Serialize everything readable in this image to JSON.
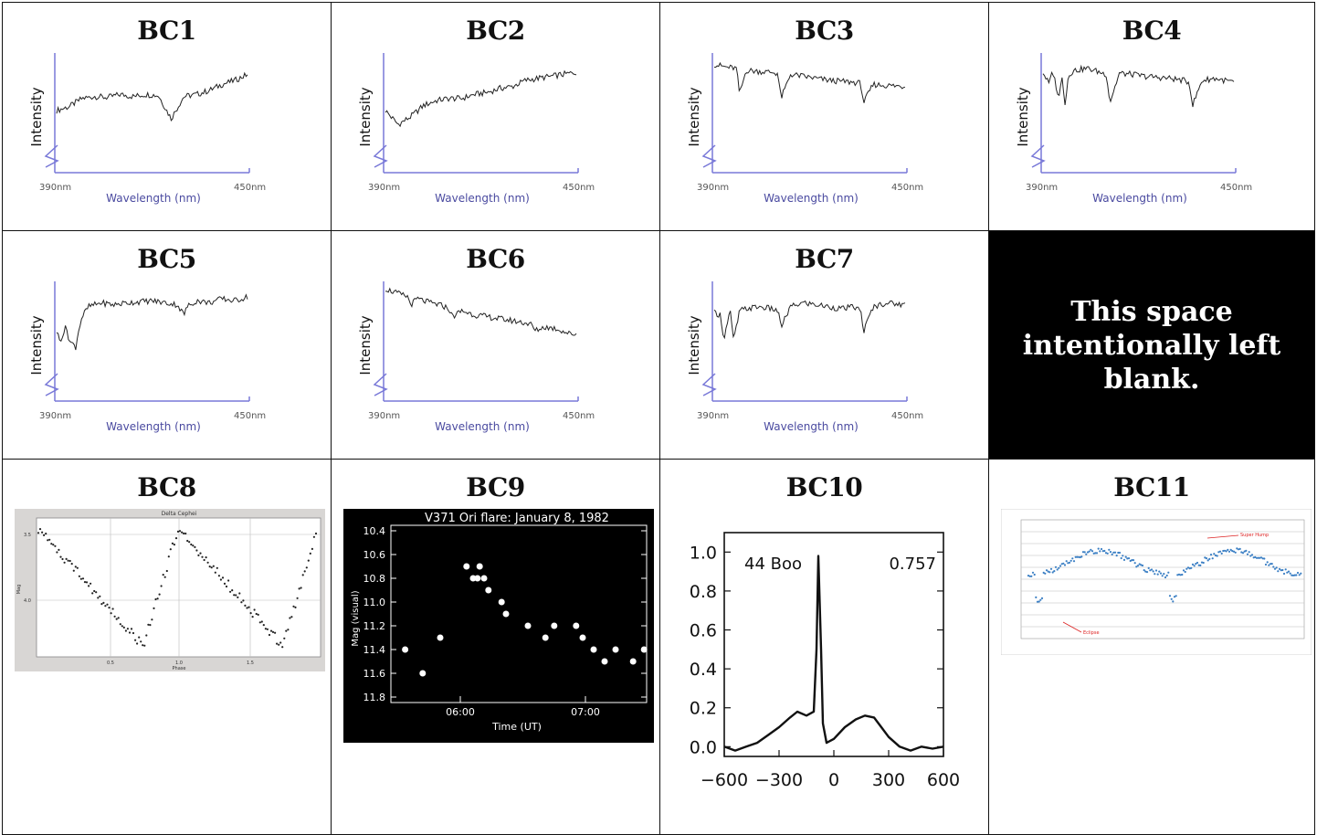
{
  "cells": {
    "bc1": {
      "title": "BC1"
    },
    "bc2": {
      "title": "BC2"
    },
    "bc3": {
      "title": "BC3"
    },
    "bc4": {
      "title": "BC4"
    },
    "bc5": {
      "title": "BC5"
    },
    "bc6": {
      "title": "BC6"
    },
    "bc7": {
      "title": "BC7"
    },
    "blank": {
      "text": "This space intentionally left blank."
    },
    "bc8": {
      "title": "BC8"
    },
    "bc9": {
      "title": "BC9"
    },
    "bc10": {
      "title": "BC10"
    },
    "bc11": {
      "title": "BC11"
    }
  },
  "spectrum_axis": {
    "ylabel": "Intensity",
    "xlabel": "Wavelength (nm)",
    "xmin_label": "390nm",
    "xmax_label": "450nm"
  },
  "chart_data": [
    {
      "id": "BC1",
      "type": "line",
      "ylabel": "Intensity",
      "xlabel": "Wavelength (nm)",
      "xlim": [
        390,
        450
      ],
      "x": [
        390,
        394,
        398,
        402,
        406,
        410,
        414,
        418,
        422,
        426,
        430,
        434,
        438,
        442,
        446,
        450
      ],
      "y": [
        0.5,
        0.54,
        0.62,
        0.64,
        0.63,
        0.66,
        0.64,
        0.66,
        0.65,
        0.42,
        0.64,
        0.66,
        0.7,
        0.76,
        0.8,
        0.86
      ]
    },
    {
      "id": "BC2",
      "type": "line",
      "ylabel": "Intensity",
      "xlabel": "Wavelength (nm)",
      "xlim": [
        390,
        450
      ],
      "x": [
        390,
        394,
        398,
        402,
        406,
        410,
        414,
        418,
        422,
        426,
        430,
        434,
        438,
        442,
        446,
        450
      ],
      "y": [
        0.5,
        0.36,
        0.44,
        0.55,
        0.6,
        0.62,
        0.62,
        0.66,
        0.68,
        0.72,
        0.74,
        0.8,
        0.82,
        0.84,
        0.86,
        0.88
      ]
    },
    {
      "id": "BC3",
      "type": "line",
      "ylabel": "Intensity",
      "xlabel": "Wavelength (nm)",
      "xlim": [
        390,
        450
      ],
      "x": [
        390,
        394,
        397,
        398,
        400,
        404,
        408,
        410,
        411,
        414,
        418,
        422,
        426,
        430,
        434,
        436,
        437,
        440,
        444,
        450
      ],
      "y": [
        0.96,
        0.93,
        0.92,
        0.66,
        0.9,
        0.89,
        0.88,
        0.87,
        0.62,
        0.86,
        0.84,
        0.82,
        0.8,
        0.79,
        0.78,
        0.77,
        0.58,
        0.76,
        0.75,
        0.74
      ]
    },
    {
      "id": "BC4",
      "type": "line",
      "ylabel": "Intensity",
      "xlabel": "Wavelength (nm)",
      "xlim": [
        390,
        450
      ],
      "x": [
        390,
        392,
        393,
        395,
        396,
        397,
        398,
        400,
        404,
        408,
        410,
        411,
        414,
        418,
        422,
        426,
        430,
        434,
        436,
        437,
        440,
        444,
        450
      ],
      "y": [
        0.88,
        0.76,
        0.9,
        0.62,
        0.85,
        0.55,
        0.86,
        0.9,
        0.92,
        0.88,
        0.86,
        0.58,
        0.87,
        0.86,
        0.84,
        0.83,
        0.82,
        0.8,
        0.78,
        0.55,
        0.8,
        0.82,
        0.78
      ]
    },
    {
      "id": "BC5",
      "type": "line",
      "ylabel": "Intensity",
      "xlabel": "Wavelength (nm)",
      "xlim": [
        390,
        450
      ],
      "x": [
        390,
        391,
        393,
        394,
        396,
        397,
        398,
        400,
        404,
        408,
        412,
        416,
        420,
        424,
        428,
        430,
        431,
        434,
        438,
        442,
        446,
        450
      ],
      "y": [
        0.58,
        0.48,
        0.62,
        0.48,
        0.42,
        0.6,
        0.72,
        0.82,
        0.86,
        0.84,
        0.86,
        0.87,
        0.88,
        0.86,
        0.84,
        0.74,
        0.82,
        0.88,
        0.86,
        0.9,
        0.88,
        0.92
      ]
    },
    {
      "id": "BC6",
      "type": "line",
      "ylabel": "Intensity",
      "xlabel": "Wavelength (nm)",
      "xlim": [
        390,
        450
      ],
      "x": [
        390,
        394,
        397,
        398,
        400,
        404,
        408,
        410,
        411,
        414,
        418,
        422,
        426,
        430,
        434,
        436,
        437,
        440,
        444,
        448,
        450
      ],
      "y": [
        1.0,
        0.95,
        0.92,
        0.84,
        0.9,
        0.86,
        0.83,
        0.8,
        0.72,
        0.78,
        0.74,
        0.72,
        0.7,
        0.68,
        0.66,
        0.64,
        0.58,
        0.62,
        0.6,
        0.55,
        0.55
      ]
    },
    {
      "id": "BC7",
      "type": "line",
      "ylabel": "Intensity",
      "xlabel": "Wavelength (nm)",
      "xlim": [
        390,
        450
      ],
      "x": [
        390,
        392,
        393,
        395,
        396,
        397,
        398,
        400,
        404,
        408,
        410,
        411,
        414,
        418,
        422,
        426,
        430,
        434,
        436,
        437,
        440,
        444,
        450
      ],
      "y": [
        0.76,
        0.74,
        0.5,
        0.78,
        0.5,
        0.62,
        0.78,
        0.8,
        0.82,
        0.8,
        0.78,
        0.62,
        0.82,
        0.86,
        0.84,
        0.82,
        0.8,
        0.82,
        0.78,
        0.58,
        0.82,
        0.86,
        0.84
      ]
    },
    {
      "id": "BC8",
      "type": "scatter",
      "title": "Delta Cephei",
      "xlabel": "Phase",
      "ylabel": "Mag",
      "xlim": [
        0,
        2
      ],
      "ylim": [
        4.4,
        3.45
      ],
      "yticks": [
        "3.5",
        "4.0"
      ],
      "xticks": [
        "0.5",
        "1.0",
        "1.5"
      ]
    },
    {
      "id": "BC9",
      "type": "scatter",
      "title": "V371 Ori flare: January 8, 1982",
      "xlabel": "Time (UT)",
      "ylabel": "Mag (visual)",
      "yticks": [
        "10.4",
        "10.6",
        "10.8",
        "11.0",
        "11.2",
        "11.4",
        "11.6",
        "11.8"
      ],
      "xticks": [
        "06:00",
        "07:00"
      ],
      "ylim": [
        11.8,
        10.4
      ],
      "x": [
        0.04,
        0.12,
        0.2,
        0.32,
        0.35,
        0.37,
        0.38,
        0.4,
        0.42,
        0.48,
        0.5,
        0.6,
        0.68,
        0.72,
        0.82,
        0.85,
        0.9,
        0.95,
        1.0,
        1.08,
        1.13
      ],
      "y": [
        11.4,
        11.6,
        11.3,
        10.7,
        10.8,
        10.8,
        10.7,
        10.8,
        10.9,
        11.0,
        11.1,
        11.2,
        11.3,
        11.2,
        11.2,
        11.3,
        11.4,
        11.5,
        11.4,
        11.5,
        11.4
      ]
    },
    {
      "id": "BC10",
      "type": "line",
      "annotation_left": "44 Boo",
      "annotation_right": "0.757",
      "xlim": [
        -600,
        600
      ],
      "ylim": [
        -0.05,
        1.1
      ],
      "yticks": [
        "1.0",
        "0.8",
        "0.6",
        "0.4",
        "0.2",
        "0.0"
      ],
      "xticks": [
        "−600",
        "−300",
        "0",
        "300",
        "600"
      ],
      "x": [
        -600,
        -540,
        -480,
        -420,
        -360,
        -300,
        -240,
        -200,
        -150,
        -110,
        -95,
        -85,
        -70,
        -60,
        -40,
        0,
        60,
        120,
        170,
        220,
        260,
        300,
        360,
        420,
        480,
        540,
        600
      ],
      "y": [
        0.0,
        -0.02,
        0.0,
        0.02,
        0.06,
        0.1,
        0.15,
        0.18,
        0.16,
        0.18,
        0.5,
        0.98,
        0.5,
        0.12,
        0.02,
        0.04,
        0.1,
        0.14,
        0.16,
        0.15,
        0.1,
        0.05,
        0.0,
        -0.02,
        0.0,
        -0.01,
        0.0
      ]
    },
    {
      "id": "BC11",
      "type": "scatter",
      "xlabel": "",
      "ylabel": "",
      "annotation_top": "Super Hump",
      "annotation_bottom": "Eclipse"
    }
  ]
}
